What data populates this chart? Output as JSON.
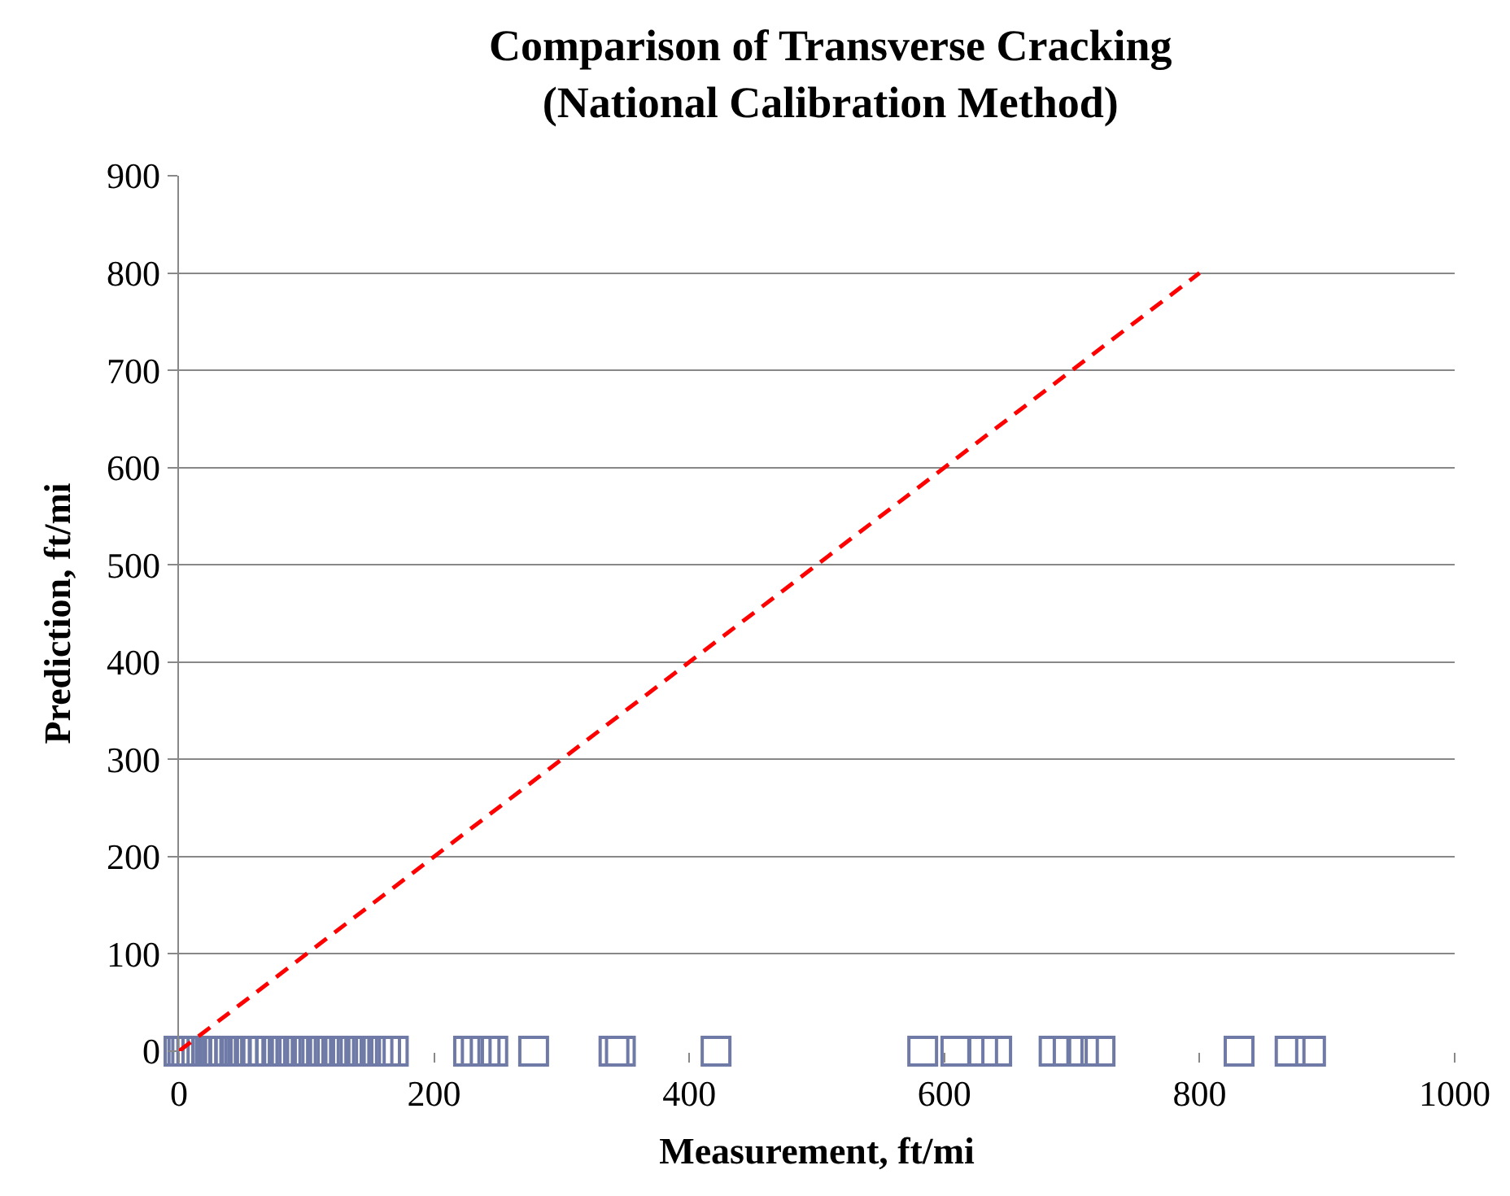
{
  "chart_data": {
    "type": "scatter",
    "title": "Comparison of Transverse Cracking\n(National Calibration Method)",
    "xlabel": "Measurement, ft/mi",
    "ylabel": "Prediction, ft/mi",
    "xlim": [
      0,
      1000
    ],
    "xticks": [
      0,
      200,
      400,
      600,
      800,
      1000
    ],
    "ylim": [
      0,
      900
    ],
    "yticks": [
      0,
      100,
      200,
      300,
      400,
      500,
      600,
      700,
      800,
      900
    ],
    "grid": "y",
    "series": [
      {
        "marker": "square",
        "color": "#6f7ba6",
        "x": [
          0,
          3,
          6,
          10,
          14,
          18,
          22,
          26,
          30,
          35,
          40,
          45,
          50,
          55,
          60,
          66,
          72,
          78,
          84,
          90,
          96,
          102,
          108,
          114,
          120,
          126,
          132,
          138,
          144,
          150,
          156,
          162,
          168,
          227,
          233,
          240,
          246,
          278,
          341,
          346,
          421,
          583,
          609,
          630,
          641,
          686,
          697,
          709,
          722,
          831,
          871,
          887
        ],
        "values": [
          0,
          0,
          0,
          0,
          0,
          0,
          0,
          0,
          0,
          0,
          0,
          0,
          0,
          0,
          0,
          0,
          0,
          0,
          0,
          0,
          0,
          0,
          0,
          0,
          0,
          0,
          0,
          0,
          0,
          0,
          0,
          0,
          0,
          0,
          0,
          0,
          0,
          0,
          0,
          0,
          0,
          0,
          0,
          0,
          0,
          0,
          0,
          0,
          0,
          0,
          0,
          0
        ]
      },
      {
        "type": "line",
        "line_style": "dashed",
        "color": "#ff0000",
        "x": [
          0,
          800
        ],
        "values": [
          0,
          800
        ]
      }
    ]
  }
}
